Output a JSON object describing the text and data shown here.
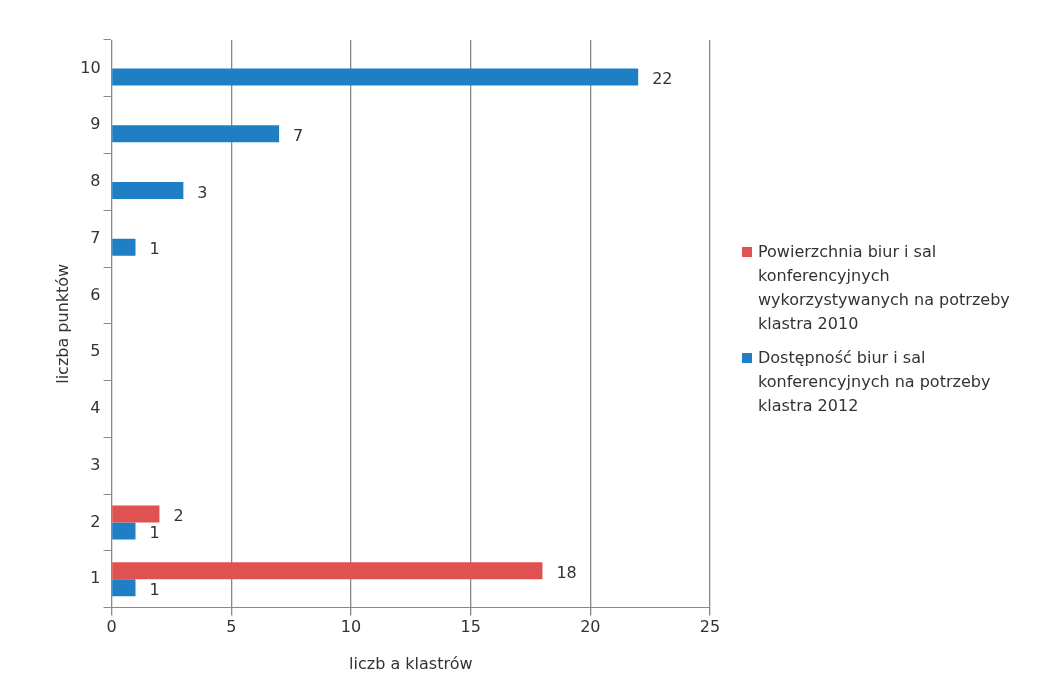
{
  "chart_data": {
    "type": "bar",
    "orientation": "horizontal",
    "xlabel": "liczb a klastrów",
    "ylabel": "liczba punktów",
    "categories": [
      "10",
      "9",
      "8",
      "7",
      "6",
      "5",
      "4",
      "3",
      "2",
      "1"
    ],
    "series": [
      {
        "name": "Powierzchnia biur i sal konferencyjnych wykorzystywanych na potrzeby klastra 2010",
        "color": "#e05252",
        "values": [
          null,
          null,
          null,
          null,
          null,
          null,
          null,
          null,
          2,
          18
        ]
      },
      {
        "name": "Dostępność biur i sal konferencyjnych na potrzeby klastra 2012",
        "color": "#1f7fc4",
        "values": [
          22,
          7,
          3,
          1,
          null,
          null,
          null,
          null,
          1,
          1
        ]
      }
    ],
    "xlim": [
      0,
      25
    ],
    "xticks": [
      0,
      5,
      10,
      15,
      20,
      25
    ],
    "grid": "x",
    "legend": "right",
    "data_labels": true
  }
}
